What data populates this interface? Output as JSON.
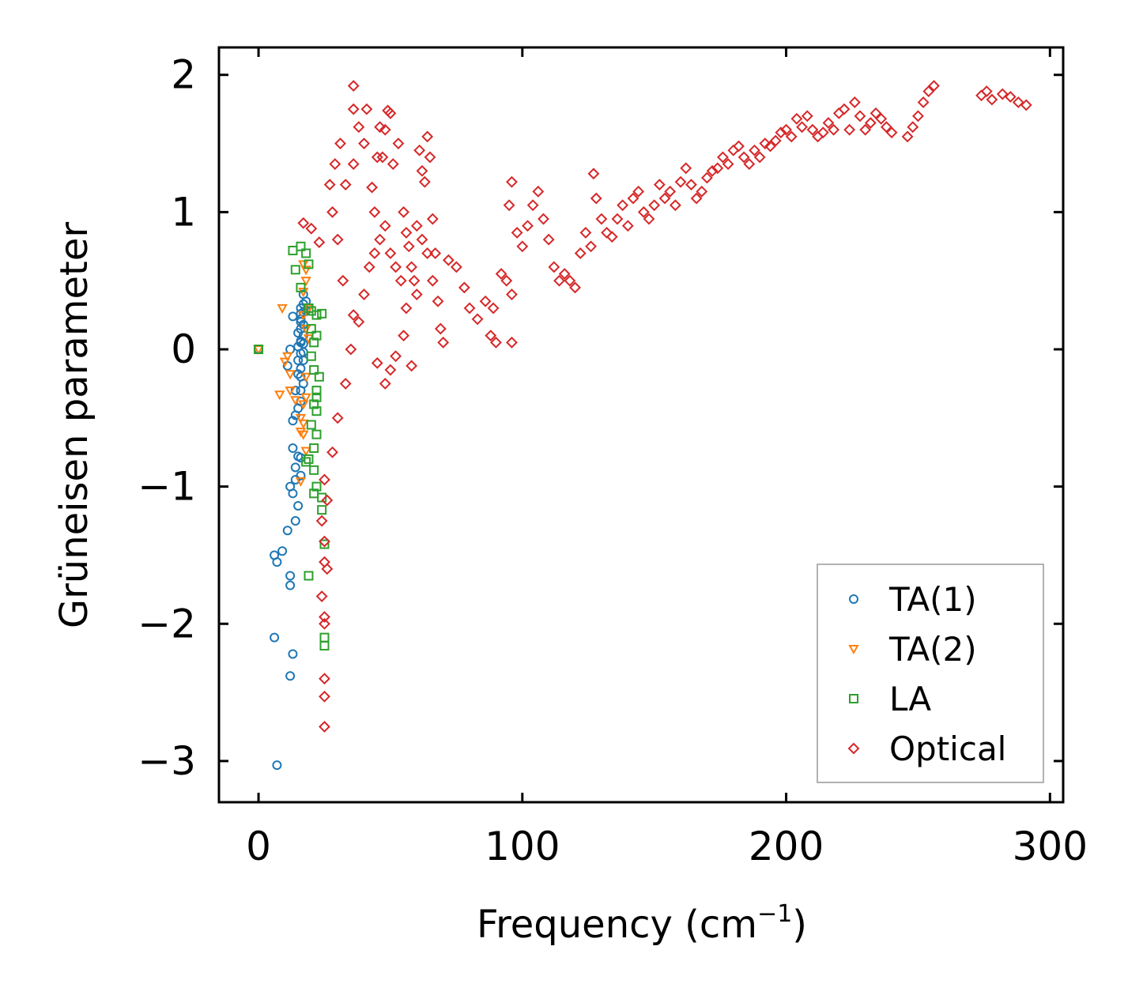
{
  "chart_data": {
    "type": "scatter",
    "title": "",
    "xlabel": "Frequency (cm",
    "xlabel_superscript": "−1",
    "xlabel_suffix": ")",
    "ylabel": "Grüneisen parameter",
    "xlim": [
      -15,
      305
    ],
    "ylim": [
      -3.3,
      2.2
    ],
    "xticks": [
      0,
      100,
      200,
      300
    ],
    "xtick_labels": [
      "0",
      "100",
      "200",
      "300"
    ],
    "yticks": [
      -3,
      -2,
      -1,
      0,
      1,
      2
    ],
    "ytick_labels": [
      "−3",
      "−2",
      "−1",
      "0",
      "1",
      "2"
    ],
    "grid": false,
    "legend_position": "lower-right",
    "series": [
      {
        "name": "TA(1)",
        "marker": "circle",
        "color": "#1f77b4",
        "points": [
          [
            0,
            0
          ],
          [
            7,
            -3.03
          ],
          [
            6,
            -2.1
          ],
          [
            12,
            -2.38
          ],
          [
            13,
            -2.22
          ],
          [
            12,
            -1.72
          ],
          [
            12,
            -1.65
          ],
          [
            7,
            -1.55
          ],
          [
            9,
            -1.47
          ],
          [
            6,
            -1.5
          ],
          [
            14,
            -1.25
          ],
          [
            11,
            -1.32
          ],
          [
            15,
            -1.14
          ],
          [
            13,
            -1.05
          ],
          [
            12,
            -1.0
          ],
          [
            14,
            -0.95
          ],
          [
            16,
            -0.92
          ],
          [
            14,
            -0.86
          ],
          [
            15,
            -0.78
          ],
          [
            13,
            -0.72
          ],
          [
            16,
            -0.79
          ],
          [
            13,
            -0.52
          ],
          [
            14,
            -0.48
          ],
          [
            15,
            -0.43
          ],
          [
            16,
            -0.38
          ],
          [
            14,
            -0.3
          ],
          [
            16,
            -0.3
          ],
          [
            17,
            -0.25
          ],
          [
            15,
            -0.18
          ],
          [
            16,
            -0.14
          ],
          [
            17,
            -0.08
          ],
          [
            16,
            -0.03
          ],
          [
            15,
            0.02
          ],
          [
            16,
            0.06
          ],
          [
            17,
            0.1
          ],
          [
            16,
            0.15
          ],
          [
            17,
            0.18
          ],
          [
            16,
            0.22
          ],
          [
            17,
            0.27
          ],
          [
            16,
            0.3
          ],
          [
            17,
            0.33
          ],
          [
            18,
            0.35
          ],
          [
            16,
            0.05
          ],
          [
            17,
            -0.02
          ],
          [
            13,
            0.24
          ],
          [
            12,
            0.0
          ],
          [
            11,
            -0.12
          ],
          [
            15,
            0.12
          ],
          [
            16,
            0.26
          ],
          [
            17,
            0.4
          ],
          [
            16,
            -0.2
          ],
          [
            15,
            -0.08
          ],
          [
            17,
            0.04
          ],
          [
            16,
            0.2
          ],
          [
            18,
            0.28
          ]
        ]
      },
      {
        "name": "TA(2)",
        "marker": "triangle-down",
        "color": "#ff7f0e",
        "points": [
          [
            0,
            0
          ],
          [
            9,
            0.3
          ],
          [
            8,
            -0.33
          ],
          [
            10,
            -0.09
          ],
          [
            12,
            -0.18
          ],
          [
            12,
            -0.3
          ],
          [
            14,
            -0.37
          ],
          [
            16,
            -0.6
          ],
          [
            17,
            -0.54
          ],
          [
            17,
            -0.62
          ],
          [
            18,
            -0.74
          ],
          [
            16,
            -0.96
          ],
          [
            17,
            0.42
          ],
          [
            18,
            0.5
          ],
          [
            18,
            0.58
          ],
          [
            17,
            0.62
          ],
          [
            19,
            0.3
          ],
          [
            18,
            0.15
          ],
          [
            17,
            -0.4
          ],
          [
            16,
            -0.5
          ],
          [
            18,
            -0.2
          ],
          [
            19,
            0.08
          ],
          [
            18,
            -0.35
          ],
          [
            17,
            0.25
          ],
          [
            11,
            -0.05
          ]
        ]
      },
      {
        "name": "LA",
        "marker": "square",
        "color": "#2ca02c",
        "points": [
          [
            0,
            0
          ],
          [
            13,
            0.72
          ],
          [
            14,
            0.58
          ],
          [
            16,
            0.75
          ],
          [
            16,
            0.45
          ],
          [
            19,
            0.3
          ],
          [
            20,
            0.28
          ],
          [
            22,
            0.25
          ],
          [
            24,
            0.26
          ],
          [
            21,
            0.05
          ],
          [
            20,
            -0.05
          ],
          [
            21,
            -0.15
          ],
          [
            22,
            -0.3
          ],
          [
            21,
            -0.4
          ],
          [
            22,
            -0.45
          ],
          [
            20,
            -0.55
          ],
          [
            22,
            -0.62
          ],
          [
            21,
            -0.72
          ],
          [
            19,
            -0.8
          ],
          [
            18,
            -0.82
          ],
          [
            21,
            -0.88
          ],
          [
            22,
            -1.0
          ],
          [
            21,
            -1.05
          ],
          [
            24,
            -1.08
          ],
          [
            24,
            -1.17
          ],
          [
            25,
            -1.42
          ],
          [
            19,
            -1.65
          ],
          [
            25,
            -2.1
          ],
          [
            25,
            -2.16
          ],
          [
            22,
            0.1
          ],
          [
            23,
            -0.2
          ],
          [
            22,
            -0.35
          ],
          [
            20,
            0.15
          ],
          [
            19,
            0.62
          ],
          [
            18,
            0.7
          ]
        ]
      },
      {
        "name": "Optical",
        "marker": "diamond",
        "color": "#d62728",
        "points": [
          [
            20,
            0.88
          ],
          [
            23,
            0.78
          ],
          [
            17,
            0.92
          ],
          [
            24,
            -1.25
          ],
          [
            25,
            -1.4
          ],
          [
            25,
            -1.55
          ],
          [
            24,
            -1.8
          ],
          [
            25,
            -1.95
          ],
          [
            25,
            -2.0
          ],
          [
            25,
            -2.4
          ],
          [
            25,
            -2.53
          ],
          [
            25,
            -2.75
          ],
          [
            26,
            -1.6
          ],
          [
            26,
            -1.1
          ],
          [
            25,
            -0.95
          ],
          [
            28,
            -0.75
          ],
          [
            30,
            -0.5
          ],
          [
            33,
            -0.25
          ],
          [
            36,
            0.25
          ],
          [
            35,
            0.0
          ],
          [
            36,
            1.35
          ],
          [
            36,
            1.75
          ],
          [
            38,
            1.62
          ],
          [
            36,
            1.92
          ],
          [
            41,
            1.75
          ],
          [
            40,
            1.5
          ],
          [
            43,
            1.18
          ],
          [
            44,
            1.0
          ],
          [
            45,
            1.4
          ],
          [
            46,
            1.62
          ],
          [
            47,
            1.4
          ],
          [
            48,
            1.6
          ],
          [
            49,
            1.74
          ],
          [
            50,
            1.72
          ],
          [
            51,
            1.35
          ],
          [
            53,
            1.5
          ],
          [
            55,
            1.0
          ],
          [
            56,
            0.85
          ],
          [
            57,
            0.75
          ],
          [
            58,
            0.6
          ],
          [
            59,
            0.5
          ],
          [
            60,
            0.4
          ],
          [
            61,
            1.45
          ],
          [
            62,
            1.3
          ],
          [
            63,
            1.22
          ],
          [
            64,
            1.55
          ],
          [
            65,
            1.4
          ],
          [
            66,
            0.95
          ],
          [
            67,
            0.7
          ],
          [
            68,
            0.35
          ],
          [
            69,
            0.15
          ],
          [
            70,
            0.05
          ],
          [
            48,
            -0.25
          ],
          [
            45,
            -0.1
          ],
          [
            50,
            -0.15
          ],
          [
            52,
            -0.05
          ],
          [
            58,
            -0.12
          ],
          [
            55,
            0.1
          ],
          [
            40,
            0.4
          ],
          [
            42,
            0.6
          ],
          [
            44,
            0.7
          ],
          [
            46,
            0.8
          ],
          [
            48,
            0.9
          ],
          [
            50,
            0.7
          ],
          [
            52,
            0.6
          ],
          [
            54,
            0.5
          ],
          [
            56,
            0.3
          ],
          [
            38,
            0.2
          ],
          [
            32,
            0.5
          ],
          [
            30,
            0.8
          ],
          [
            28,
            1.0
          ],
          [
            27,
            1.2
          ],
          [
            29,
            1.35
          ],
          [
            31,
            1.5
          ],
          [
            33,
            1.2
          ],
          [
            72,
            0.65
          ],
          [
            75,
            0.6
          ],
          [
            78,
            0.45
          ],
          [
            80,
            0.3
          ],
          [
            83,
            0.22
          ],
          [
            86,
            0.35
          ],
          [
            88,
            0.1
          ],
          [
            90,
            0.05
          ],
          [
            89,
            0.3
          ],
          [
            92,
            0.55
          ],
          [
            94,
            0.5
          ],
          [
            96,
            0.4
          ],
          [
            96,
            0.05
          ],
          [
            95,
            1.05
          ],
          [
            96,
            1.22
          ],
          [
            98,
            0.85
          ],
          [
            100,
            0.75
          ],
          [
            102,
            0.9
          ],
          [
            104,
            1.05
          ],
          [
            106,
            1.15
          ],
          [
            108,
            0.95
          ],
          [
            110,
            0.8
          ],
          [
            112,
            0.6
          ],
          [
            114,
            0.5
          ],
          [
            116,
            0.55
          ],
          [
            118,
            0.5
          ],
          [
            120,
            0.45
          ],
          [
            122,
            0.7
          ],
          [
            124,
            0.85
          ],
          [
            126,
            0.75
          ],
          [
            127,
            1.28
          ],
          [
            128,
            1.1
          ],
          [
            130,
            0.95
          ],
          [
            132,
            0.85
          ],
          [
            134,
            0.82
          ],
          [
            136,
            0.95
          ],
          [
            138,
            1.05
          ],
          [
            140,
            0.9
          ],
          [
            142,
            1.1
          ],
          [
            144,
            1.15
          ],
          [
            146,
            1.0
          ],
          [
            148,
            0.95
          ],
          [
            150,
            1.05
          ],
          [
            152,
            1.2
          ],
          [
            154,
            1.1
          ],
          [
            156,
            1.15
          ],
          [
            158,
            1.05
          ],
          [
            160,
            1.22
          ],
          [
            162,
            1.32
          ],
          [
            164,
            1.2
          ],
          [
            166,
            1.1
          ],
          [
            168,
            1.15
          ],
          [
            170,
            1.25
          ],
          [
            172,
            1.3
          ],
          [
            174,
            1.32
          ],
          [
            176,
            1.4
          ],
          [
            178,
            1.35
          ],
          [
            180,
            1.45
          ],
          [
            182,
            1.48
          ],
          [
            184,
            1.4
          ],
          [
            186,
            1.35
          ],
          [
            188,
            1.45
          ],
          [
            190,
            1.4
          ],
          [
            192,
            1.5
          ],
          [
            194,
            1.48
          ],
          [
            196,
            1.52
          ],
          [
            198,
            1.58
          ],
          [
            200,
            1.6
          ],
          [
            202,
            1.55
          ],
          [
            204,
            1.68
          ],
          [
            206,
            1.62
          ],
          [
            208,
            1.7
          ],
          [
            210,
            1.6
          ],
          [
            212,
            1.55
          ],
          [
            214,
            1.58
          ],
          [
            216,
            1.65
          ],
          [
            218,
            1.6
          ],
          [
            220,
            1.72
          ],
          [
            222,
            1.75
          ],
          [
            224,
            1.6
          ],
          [
            226,
            1.8
          ],
          [
            228,
            1.7
          ],
          [
            230,
            1.6
          ],
          [
            232,
            1.65
          ],
          [
            234,
            1.72
          ],
          [
            236,
            1.68
          ],
          [
            238,
            1.62
          ],
          [
            240,
            1.58
          ],
          [
            246,
            1.55
          ],
          [
            248,
            1.62
          ],
          [
            250,
            1.7
          ],
          [
            252,
            1.8
          ],
          [
            254,
            1.88
          ],
          [
            256,
            1.92
          ],
          [
            274,
            1.85
          ],
          [
            276,
            1.88
          ],
          [
            278,
            1.82
          ],
          [
            282,
            1.86
          ],
          [
            285,
            1.84
          ],
          [
            288,
            1.8
          ],
          [
            291,
            1.78
          ],
          [
            60,
            0.9
          ],
          [
            62,
            0.8
          ],
          [
            64,
            0.7
          ],
          [
            66,
            0.5
          ]
        ]
      }
    ]
  }
}
